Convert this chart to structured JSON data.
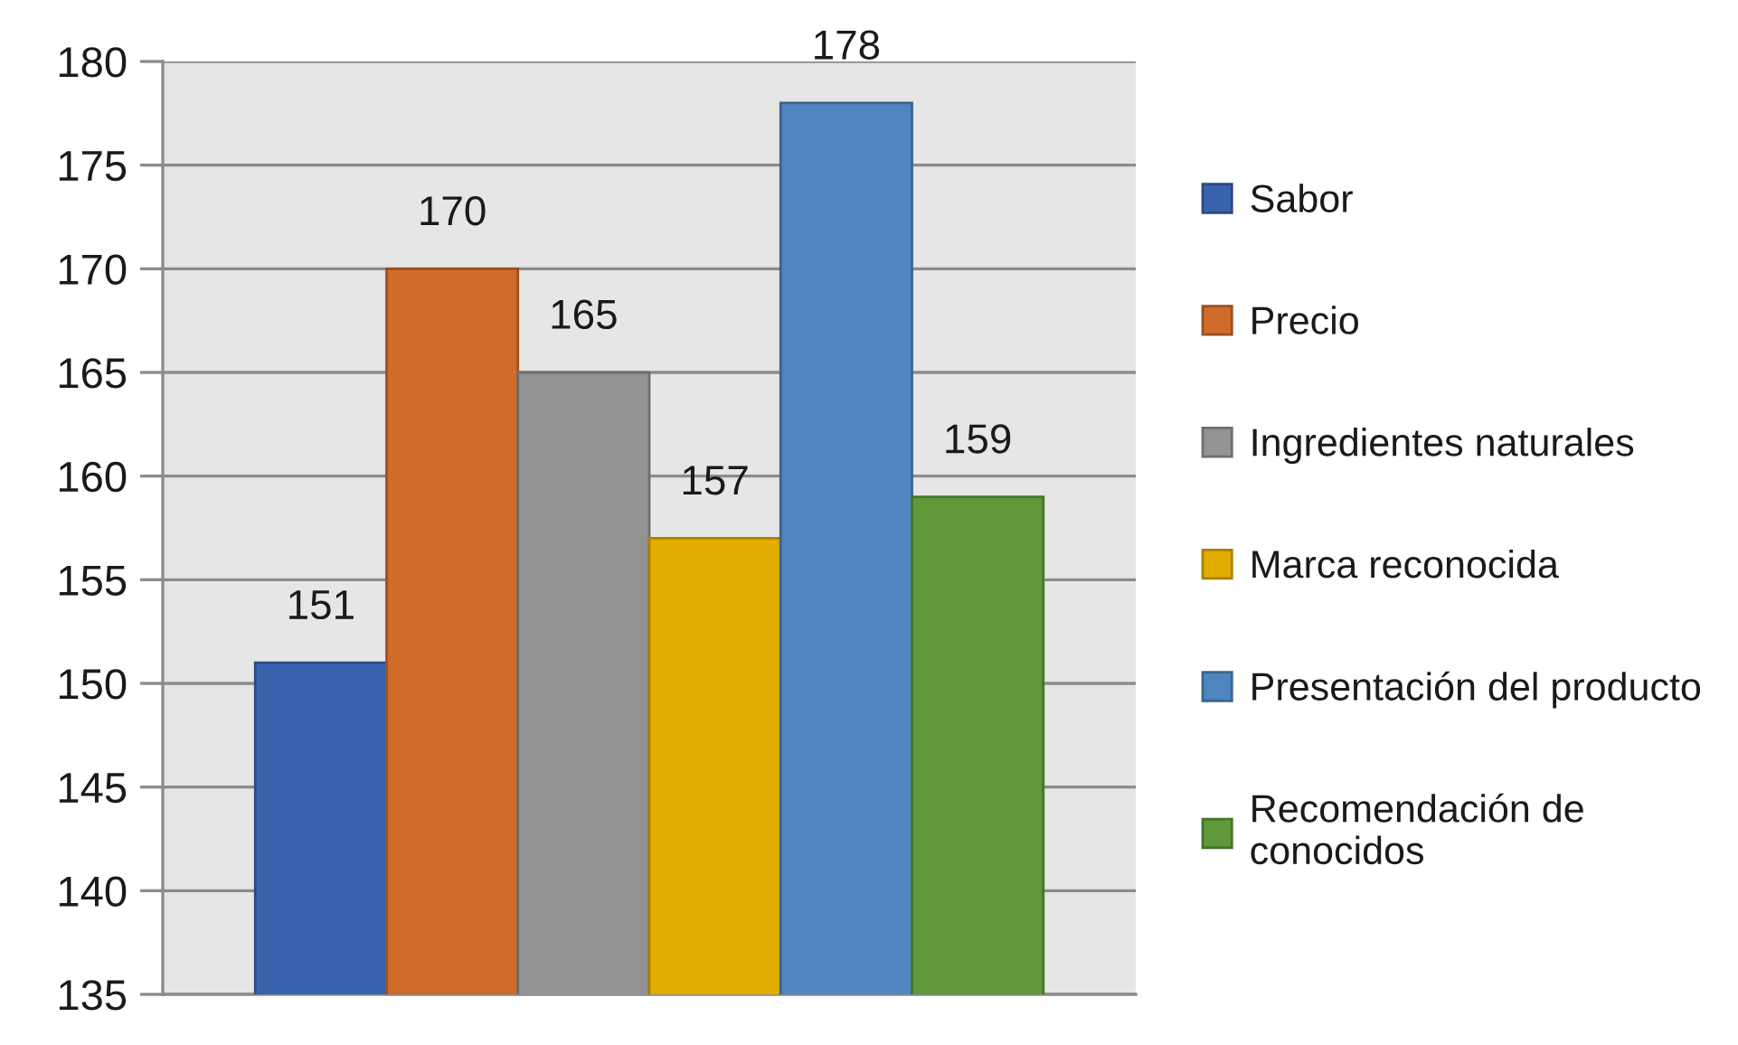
{
  "chart_data": {
    "type": "bar",
    "categories": [
      null
    ],
    "series": [
      {
        "name": "Sabor",
        "color": "#3a63ae",
        "values": [
          151
        ]
      },
      {
        "name": "Precio",
        "color": "#d06b2a",
        "values": [
          170
        ]
      },
      {
        "name": "Ingredientes naturales",
        "color": "#939393",
        "values": [
          165
        ]
      },
      {
        "name": "Marca reconocida",
        "color": "#e2ac00",
        "values": [
          157
        ]
      },
      {
        "name": "Presentación del producto",
        "color": "#4f86bf",
        "values": [
          178
        ]
      },
      {
        "name": "Recomendación de conocidos",
        "color": "#60993b",
        "values": [
          159
        ]
      }
    ],
    "ylim": [
      135,
      180
    ],
    "yticks": [
      135,
      140,
      145,
      150,
      155,
      160,
      165,
      170,
      175,
      180
    ],
    "grid": "y",
    "legend": "right",
    "data_labels": true,
    "tick_labels": "y"
  }
}
